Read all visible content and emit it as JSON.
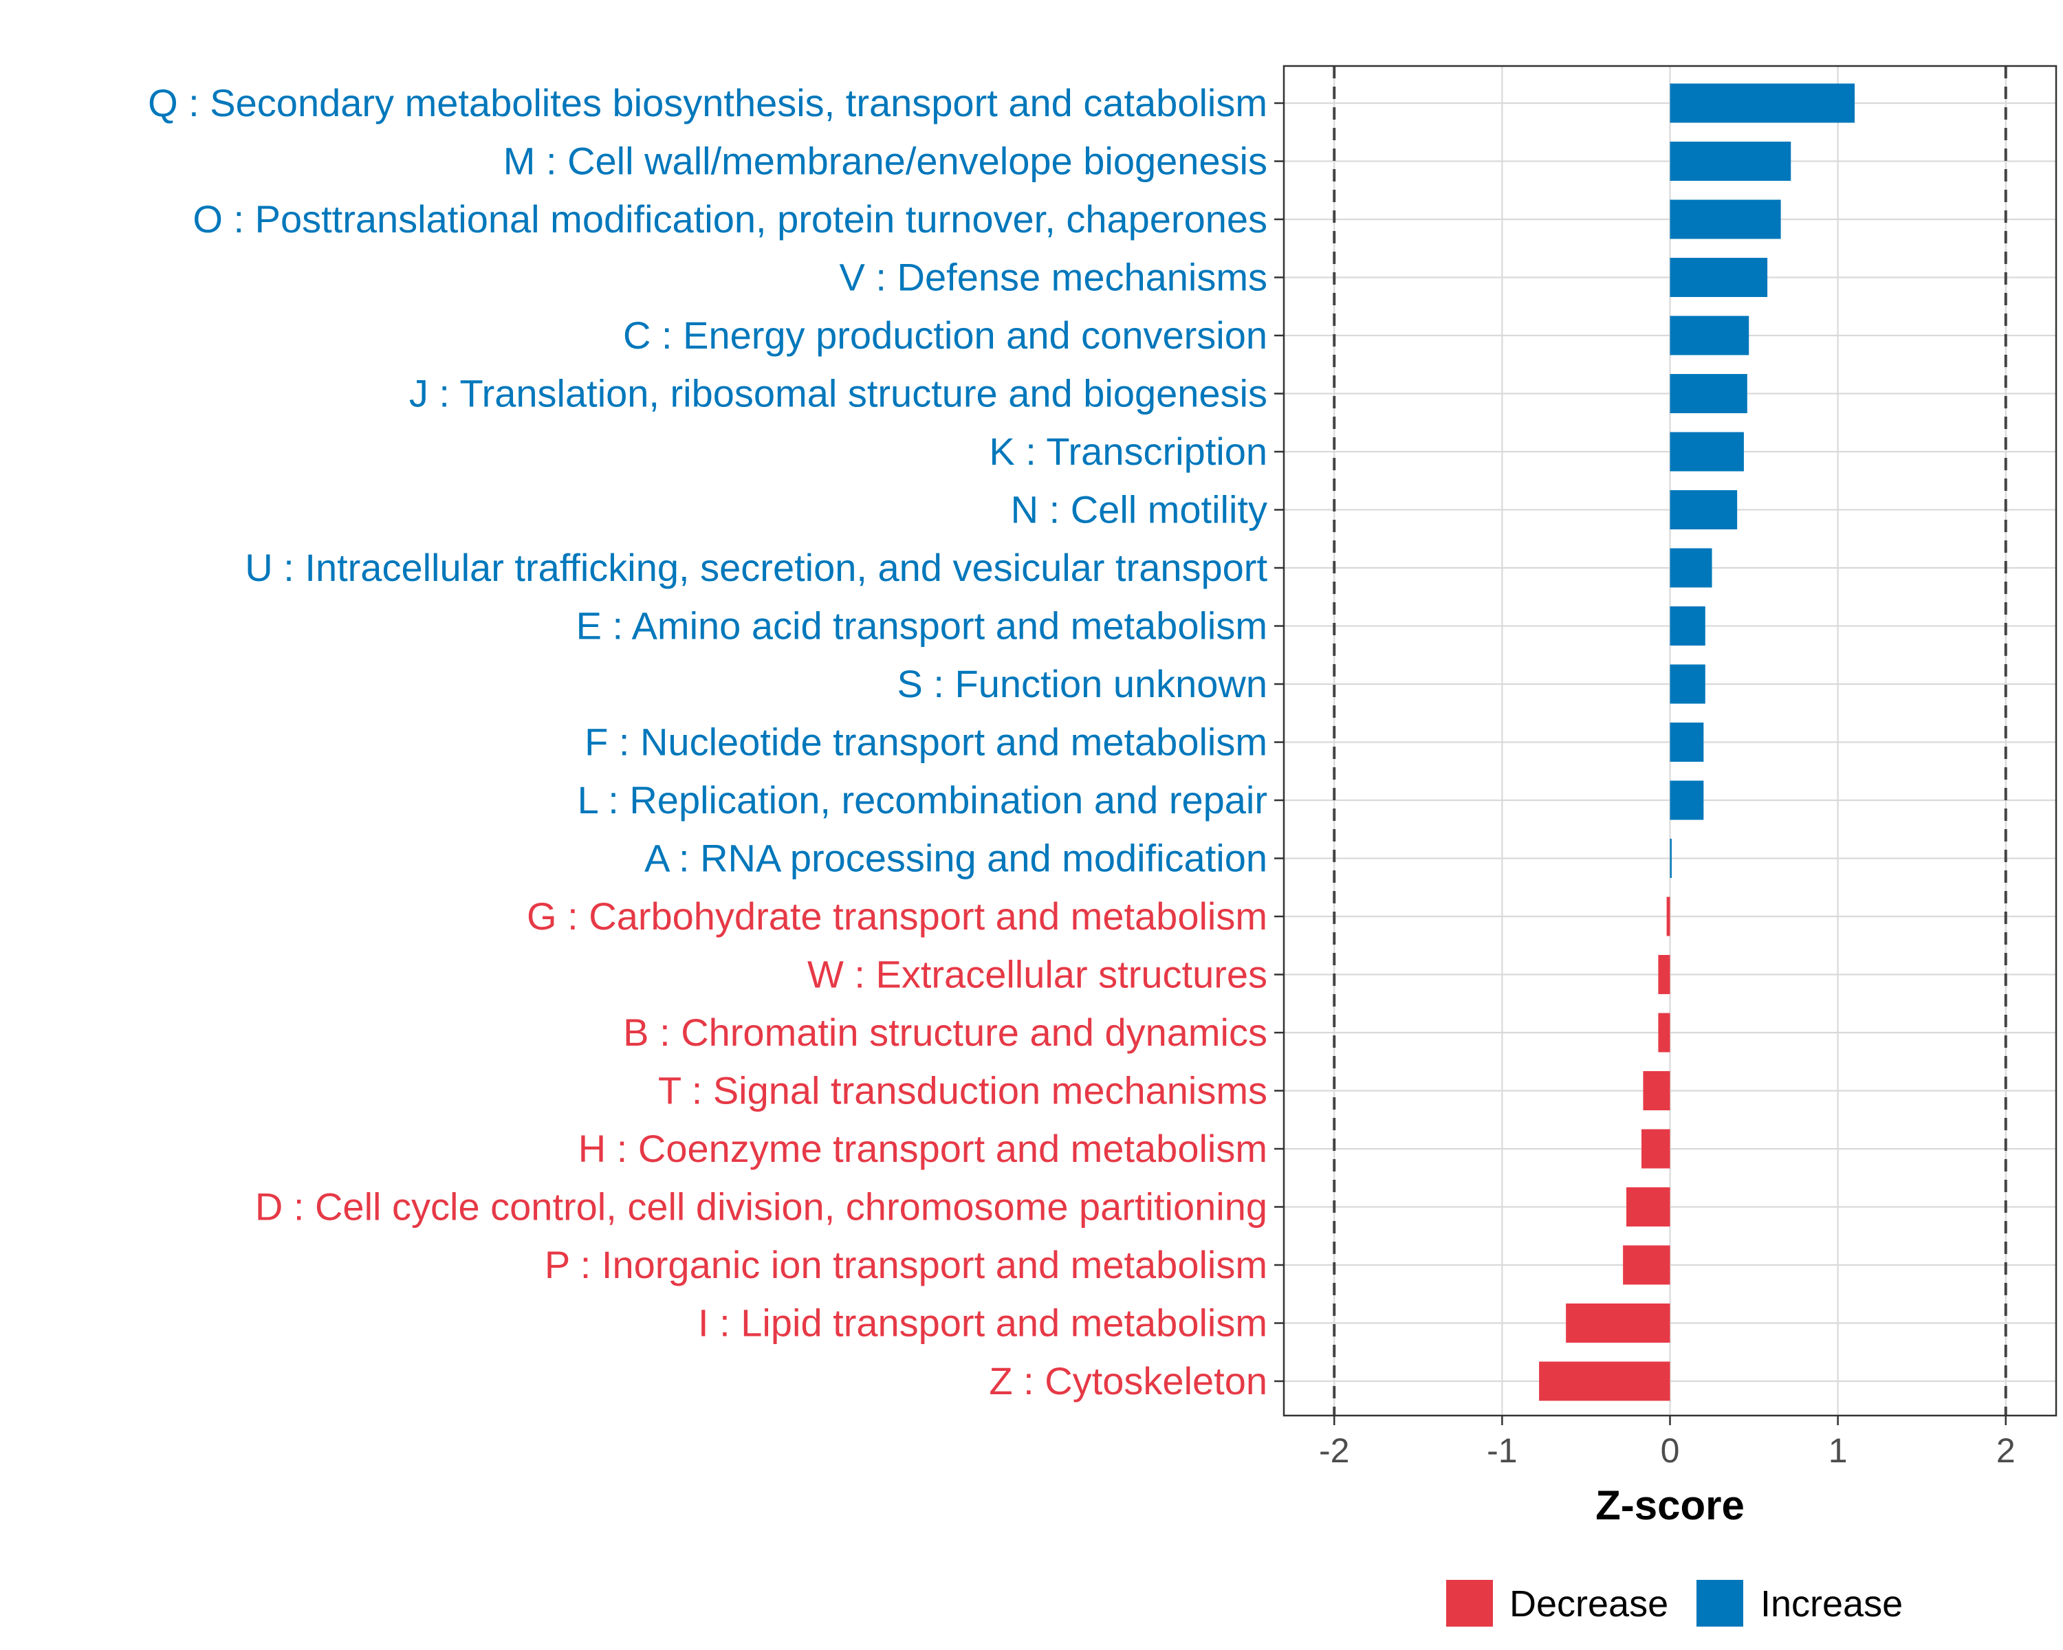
{
  "chart_data": {
    "type": "bar",
    "orientation": "horizontal",
    "xlabel": "Z-score",
    "xlim": [
      -2.3,
      2.3
    ],
    "xticks": [
      -2,
      -1,
      0,
      1,
      2
    ],
    "xtick_labels": [
      "-2",
      "-1",
      "0",
      "1",
      "2"
    ],
    "reference_lines": [
      -2,
      2
    ],
    "grid": true,
    "legend_position": "bottom",
    "colors": {
      "Decrease": "#e63946",
      "Increase": "#0077bb"
    },
    "legend": [
      {
        "name": "Decrease",
        "color": "#e63946"
      },
      {
        "name": "Increase",
        "color": "#0077bb"
      }
    ],
    "categories": [
      "Q : Secondary metabolites biosynthesis, transport and catabolism",
      "M : Cell wall/membrane/envelope biogenesis",
      "O : Posttranslational modification, protein turnover, chaperones",
      "V : Defense mechanisms",
      "C : Energy production and conversion",
      "J : Translation, ribosomal structure and biogenesis",
      "K : Transcription",
      "N : Cell motility",
      "U : Intracellular trafficking, secretion, and vesicular transport",
      "E : Amino acid transport and metabolism",
      "S : Function unknown",
      "F : Nucleotide transport and metabolism",
      "L : Replication, recombination and repair",
      "A : RNA processing and modification",
      "G : Carbohydrate transport and metabolism",
      "W : Extracellular structures",
      "B : Chromatin structure and dynamics",
      "T : Signal transduction mechanisms",
      "H : Coenzyme transport and metabolism",
      "D : Cell cycle control, cell division, chromosome partitioning",
      "P : Inorganic ion transport and metabolism",
      "I : Lipid transport and metabolism",
      "Z : Cytoskeleton"
    ],
    "values": [
      1.1,
      0.72,
      0.66,
      0.58,
      0.47,
      0.46,
      0.44,
      0.4,
      0.25,
      0.21,
      0.21,
      0.2,
      0.2,
      0.01,
      -0.02,
      -0.07,
      -0.07,
      -0.16,
      -0.17,
      -0.26,
      -0.28,
      -0.62,
      -0.78
    ],
    "groups": [
      "Increase",
      "Increase",
      "Increase",
      "Increase",
      "Increase",
      "Increase",
      "Increase",
      "Increase",
      "Increase",
      "Increase",
      "Increase",
      "Increase",
      "Increase",
      "Increase",
      "Decrease",
      "Decrease",
      "Decrease",
      "Decrease",
      "Decrease",
      "Decrease",
      "Decrease",
      "Decrease",
      "Decrease"
    ]
  }
}
